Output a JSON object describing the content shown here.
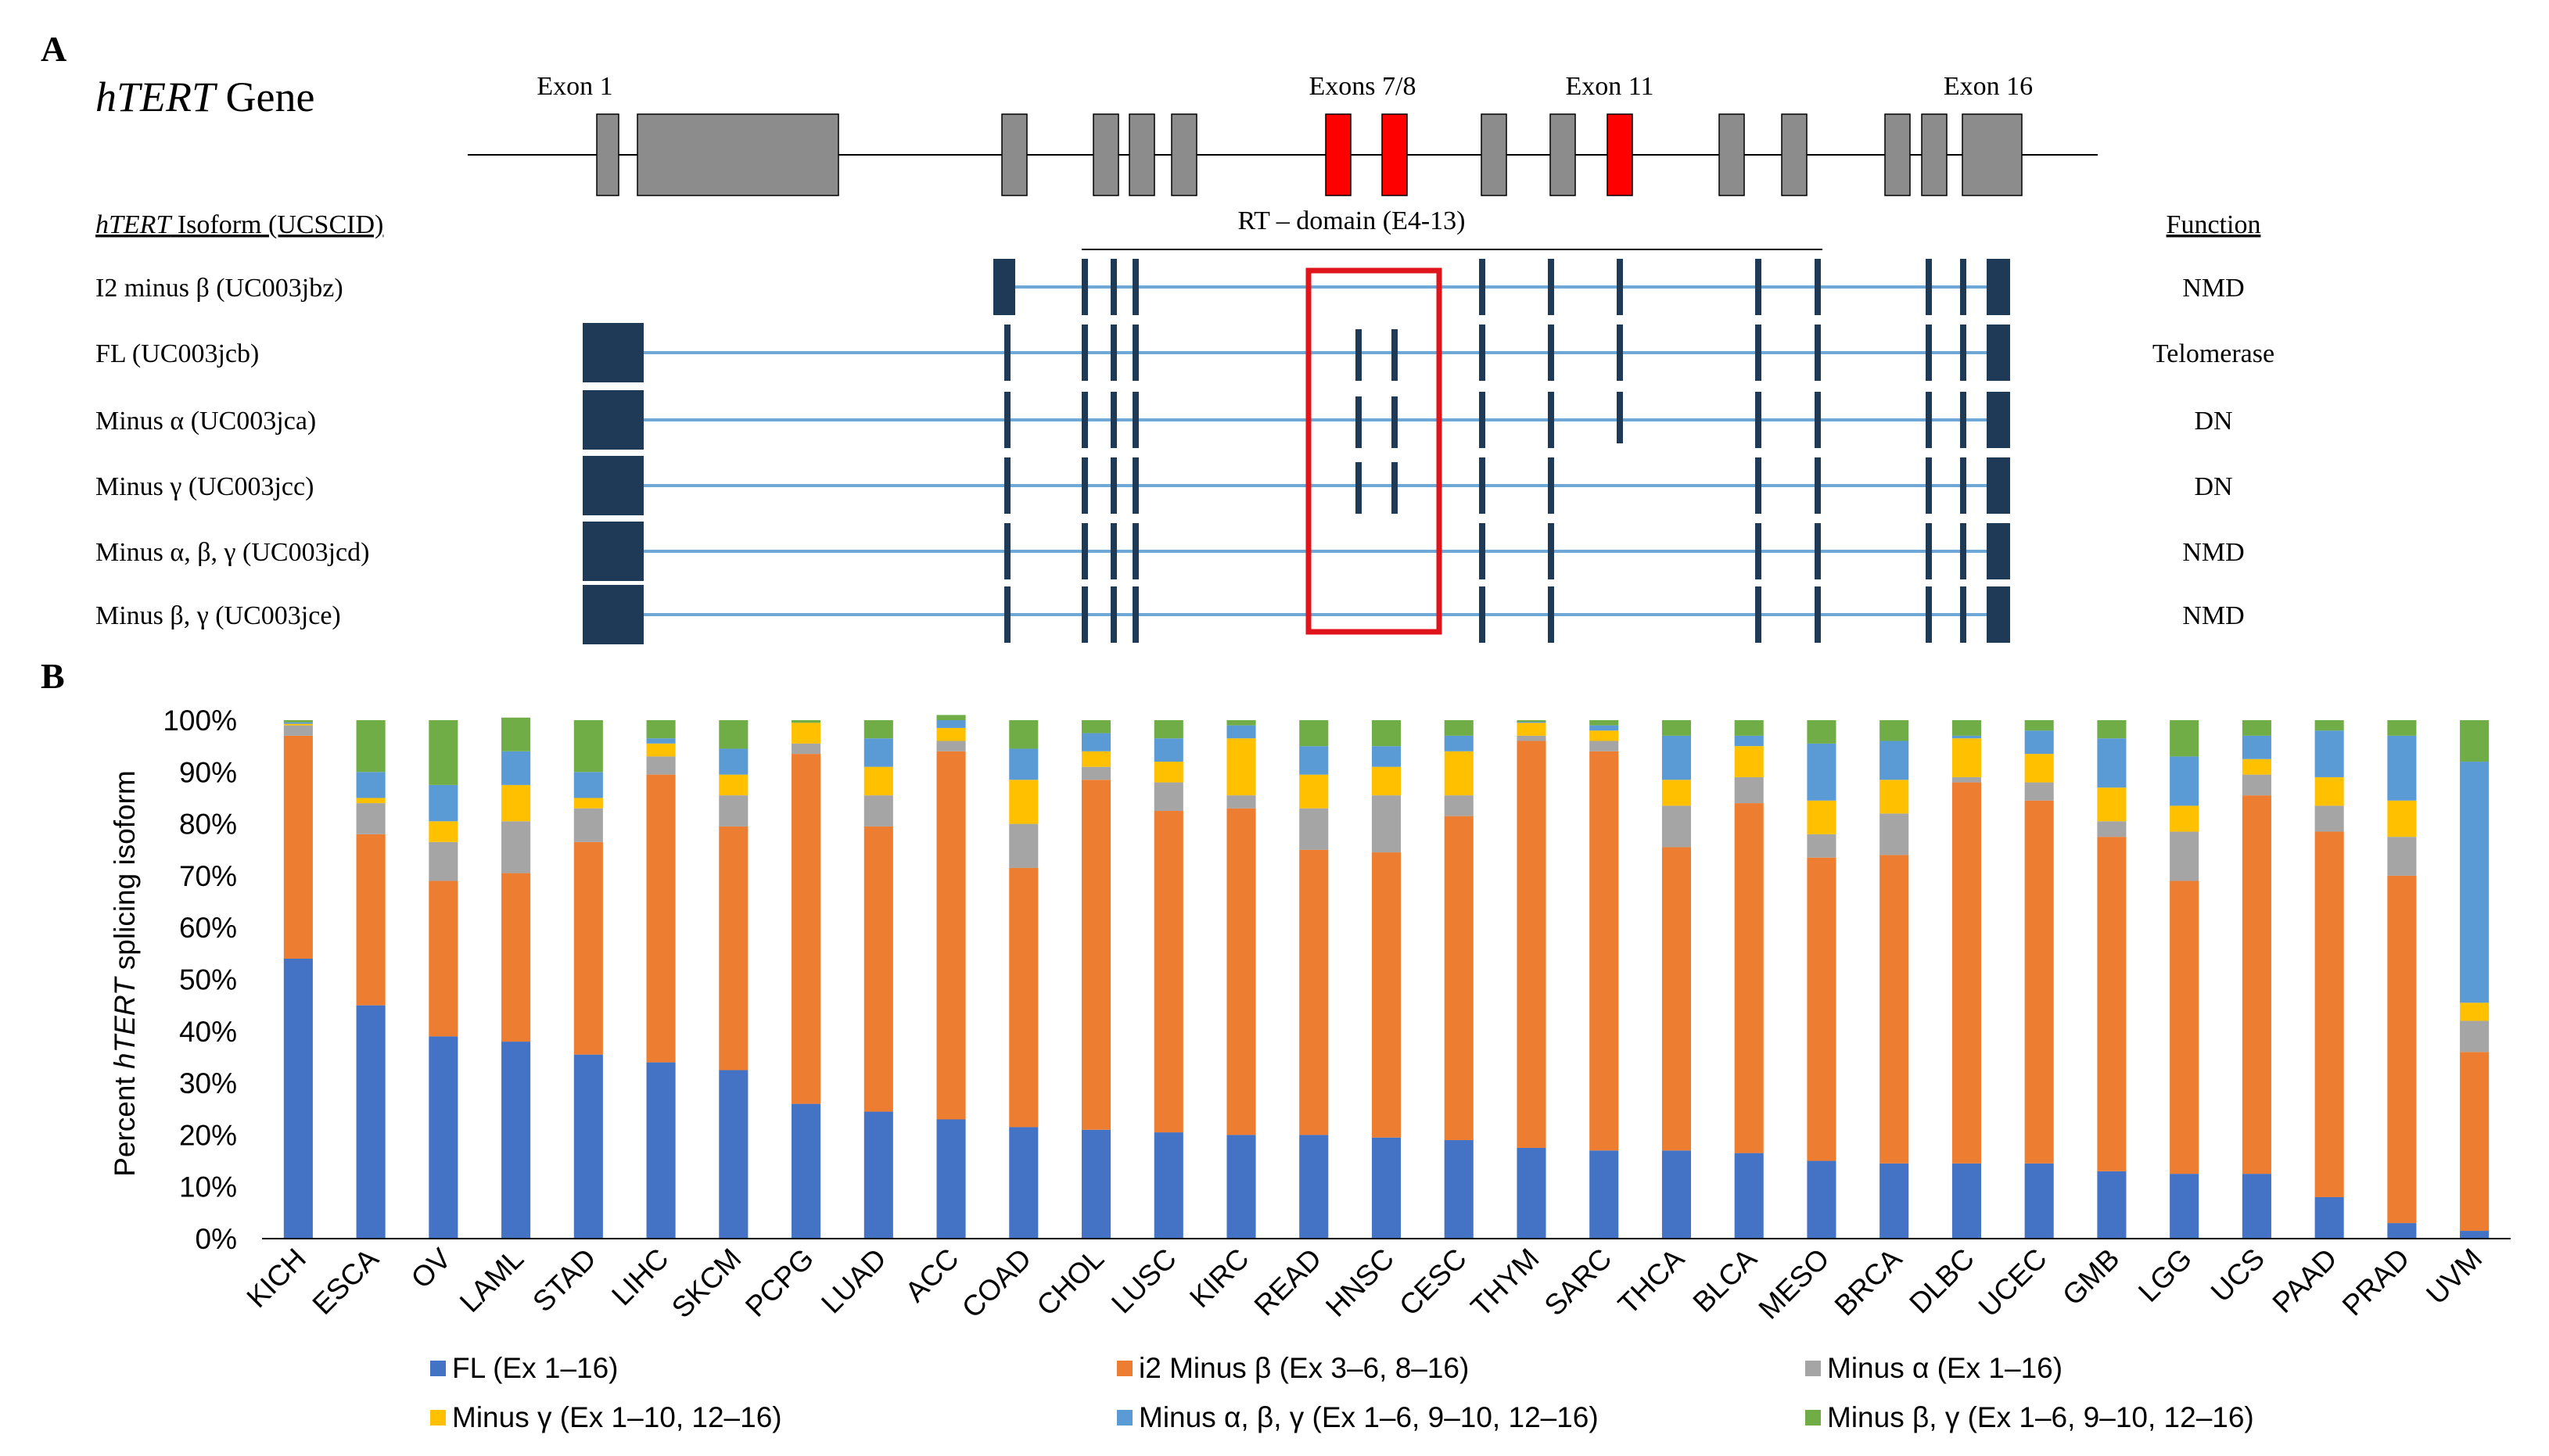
{
  "panel_a": {
    "label": "A",
    "gene_title_italic": "hTERT",
    "gene_title_rest": " Gene",
    "exon_labels": [
      "Exon 1",
      "Exons 7/8",
      "Exon 11",
      "Exon 16"
    ],
    "rt_domain_label": "RT – domain (E4-13)",
    "isoform_header_italic": "hTERT",
    "isoform_header_rest": " Isoform (UCSCID)",
    "function_header": "Function",
    "isoforms": [
      {
        "name": "I2 minus β (UC003jbz)",
        "function": "NMD"
      },
      {
        "name": "FL (UC003jcb)",
        "function": "Telomerase"
      },
      {
        "name": "Minus α (UC003jca)",
        "function": "DN"
      },
      {
        "name": "Minus γ (UC003jcc)",
        "function": "DN"
      },
      {
        "name": "Minus α, β, γ (UC003jcd)",
        "function": "NMD"
      },
      {
        "name": "Minus β, γ (UC003jce)",
        "function": "NMD"
      }
    ],
    "colors": {
      "exon_gray": "#8c8c8c",
      "exon_red": "#ff0000",
      "isoform_exon": "#1f3a56",
      "intron_line": "#6fa8d6",
      "box_red": "#e0141b"
    }
  },
  "panel_b": {
    "label": "B"
  },
  "chart_data": {
    "type": "bar",
    "stacked": true,
    "title": "",
    "xlabel": "",
    "ylabel_pre": "Percent ",
    "ylabel_italic": "hTERT",
    "ylabel_post": " splicing isoform",
    "ylim": [
      0,
      100
    ],
    "yticks": [
      "0%",
      "10%",
      "20%",
      "30%",
      "40%",
      "50%",
      "60%",
      "70%",
      "80%",
      "90%",
      "100%"
    ],
    "grid": false,
    "legend_position": "bottom",
    "categories": [
      "KICH",
      "ESCA",
      "OV",
      "LAML",
      "STAD",
      "LIHC",
      "SKCM",
      "PCPG",
      "LUAD",
      "ACC",
      "COAD",
      "CHOL",
      "LUSC",
      "KIRC",
      "READ",
      "HNSC",
      "CESC",
      "THYM",
      "SARC",
      "THCA",
      "BLCA",
      "MESO",
      "BRCA",
      "DLBC",
      "UCEC",
      "GMB",
      "LGG",
      "UCS",
      "PAAD",
      "PRAD",
      "UVM"
    ],
    "series": [
      {
        "name": "FL (Ex 1–16)",
        "color": "#4472c4",
        "values": [
          54,
          45,
          39,
          38,
          35.5,
          34,
          32.5,
          26,
          24.5,
          23,
          21.5,
          21,
          20.5,
          20,
          20,
          19.5,
          19,
          17.5,
          17,
          17,
          16.5,
          15,
          14.5,
          14.5,
          14.5,
          13,
          12.5,
          12.5,
          8,
          3,
          1.5
        ]
      },
      {
        "name": "i2 Minus β (Ex 3–6, 8–16)",
        "color": "#ed7d31",
        "values": [
          43,
          33,
          30,
          32.5,
          41,
          55.5,
          47,
          67.5,
          55,
          71,
          50,
          67.5,
          62,
          63,
          55,
          55,
          62.5,
          78.5,
          77,
          58.5,
          67.5,
          58.5,
          59.5,
          73.5,
          70,
          64.5,
          56.5,
          73,
          70.5,
          67,
          34.5
        ]
      },
      {
        "name": "Minus α (Ex 1–16)",
        "color": "#a5a5a5",
        "values": [
          2,
          6,
          7.5,
          10,
          6.5,
          3.5,
          6,
          2,
          6,
          2,
          8.5,
          2.5,
          5.5,
          2.5,
          8,
          11,
          4,
          1,
          2,
          8,
          5,
          4.5,
          8,
          1,
          3.5,
          3,
          9.5,
          4,
          5,
          7.5,
          6
        ]
      },
      {
        "name": "Minus γ (Ex 1–10, 12–16)",
        "color": "#ffc000",
        "values": [
          0.3,
          1,
          4,
          7,
          2,
          2.5,
          4,
          4,
          5.5,
          2.5,
          8.5,
          3,
          4,
          11,
          6.5,
          5.5,
          8.5,
          2.5,
          2,
          5,
          6,
          6.5,
          6.5,
          7.5,
          5.5,
          6.5,
          5,
          3,
          5.5,
          7,
          3.5
        ]
      },
      {
        "name": "Minus α, β, γ (Ex 1–6, 9–10, 12–16)",
        "color": "#5b9bd5",
        "values": [
          0.3,
          5,
          7,
          6.5,
          5,
          1,
          5,
          0,
          5.5,
          1.5,
          6,
          3.5,
          4.5,
          2.5,
          5.5,
          4,
          3,
          0.2,
          1,
          8.5,
          2,
          11,
          7.5,
          0.5,
          4.5,
          9.5,
          9.5,
          4.5,
          9,
          12.5,
          46.5
        ]
      },
      {
        "name": "Minus β, γ (Ex 1–6, 9–10, 12–16)",
        "color": "#70ad47",
        "values": [
          0.4,
          10,
          12.5,
          6.5,
          10,
          3.5,
          5.5,
          0.5,
          3.5,
          1,
          5.5,
          2.5,
          3.5,
          1,
          5,
          5,
          3,
          0.3,
          1,
          3,
          3,
          4.5,
          4,
          3,
          2,
          3.5,
          7,
          3,
          2,
          3,
          8
        ]
      }
    ]
  }
}
